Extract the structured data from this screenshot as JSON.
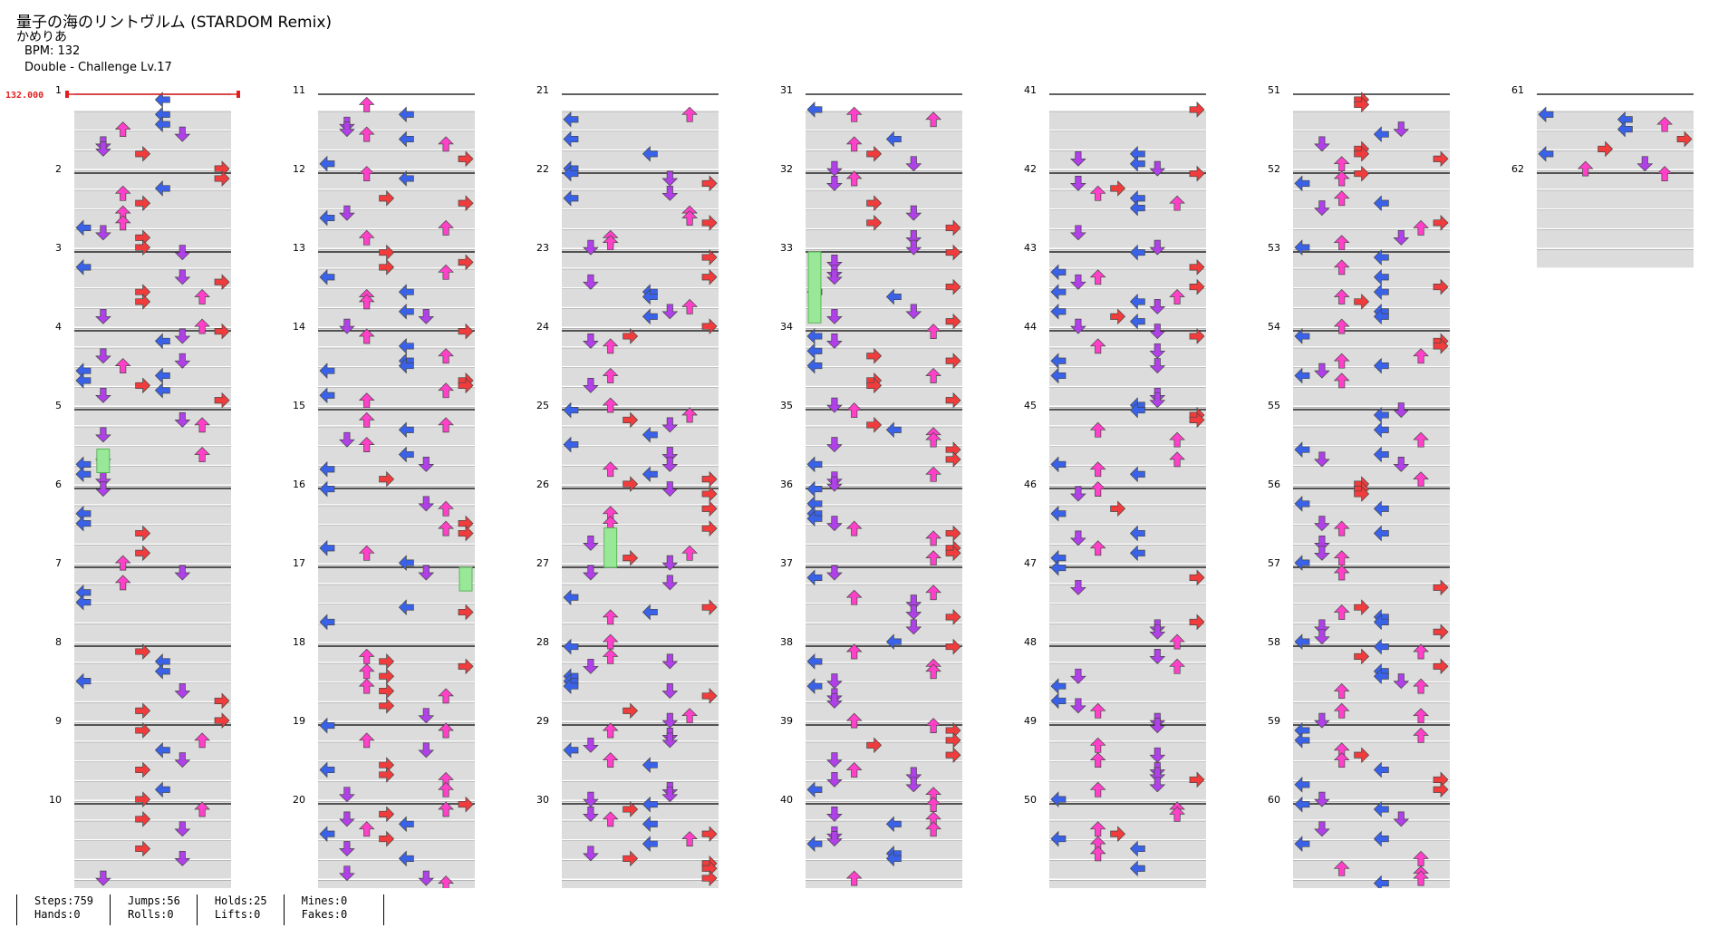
{
  "song": {
    "title": "量子の海のリントヴルム (STARDOM Remix)",
    "artist": "かめりあ",
    "bpm_text": "BPM: 132",
    "difficulty_text": "Double - Challenge Lv.17"
  },
  "bpm_marker": {
    "value_text": "132.000",
    "measure": 1
  },
  "measure_labels": [
    "1",
    "2",
    "3",
    "4",
    "5",
    "6",
    "7",
    "8",
    "9",
    "10",
    "11",
    "12",
    "13",
    "14",
    "15",
    "16",
    "17",
    "18",
    "19",
    "20",
    "21",
    "22",
    "23",
    "24",
    "25",
    "26",
    "27",
    "28",
    "29",
    "30",
    "31",
    "32",
    "33",
    "34",
    "35",
    "36",
    "37",
    "38",
    "39",
    "40",
    "41",
    "42",
    "43",
    "44",
    "45",
    "46",
    "47",
    "48",
    "49",
    "50",
    "51",
    "52",
    "53",
    "54",
    "55",
    "56",
    "57",
    "58",
    "59",
    "60",
    "61",
    "62"
  ],
  "stats": {
    "steps": "Steps:759",
    "hands": "Hands:0",
    "jumps": "Jumps:56",
    "rolls": "Rolls:0",
    "holds": "Holds:25",
    "lifts": "Lifts:0",
    "mines": "Mines:0",
    "fakes": "Fakes:0"
  },
  "colors": {
    "left": "#3a62e8",
    "down": "#b040e8",
    "up": "#ff40c8",
    "right": "#f03c3c",
    "hold": "#98e898",
    "band": "#dcdcdc",
    "bpm_line": "#e02020"
  },
  "notes": {
    "counts_visible": "dense note chart, 62 measures, double (8 lanes)"
  }
}
